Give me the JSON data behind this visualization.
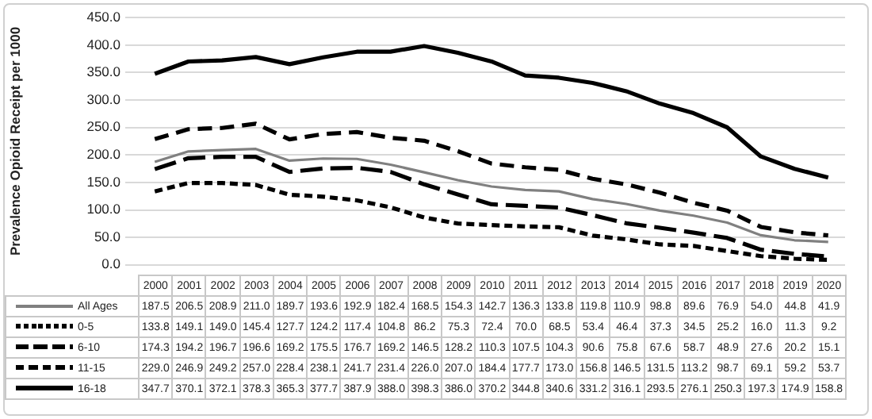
{
  "chart_data": {
    "type": "line",
    "ylabel": "Prevalence Opioid Receipt per 1000",
    "categories": [
      "2000",
      "2001",
      "2002",
      "2003",
      "2004",
      "2005",
      "2006",
      "2007",
      "2008",
      "2009",
      "2010",
      "2011",
      "2012",
      "2013",
      "2014",
      "2015",
      "2016",
      "2017",
      "2018",
      "2019",
      "2020"
    ],
    "series": [
      {
        "name": "All Ages",
        "color": "#808080",
        "line_style": "solid",
        "values": [
          187.5,
          206.5,
          208.9,
          211.0,
          189.7,
          193.6,
          192.9,
          182.4,
          168.5,
          154.3,
          142.7,
          136.3,
          133.8,
          119.8,
          110.9,
          98.8,
          89.6,
          76.9,
          54.0,
          44.8,
          41.9
        ],
        "value_labels": [
          "187.5",
          "206.5",
          "208.9",
          "211.0",
          "189.7",
          "193.6",
          "192.9",
          "182.4",
          "168.5",
          "154.3",
          "142.7",
          "136.3",
          "133.8",
          "119.8",
          "110.9",
          "98.8",
          "89.6",
          "76.9",
          "54.0",
          "44.8",
          "41.9"
        ]
      },
      {
        "name": "0-5",
        "color": "#000000",
        "line_style": "dotted",
        "values": [
          133.8,
          149.1,
          149.0,
          145.4,
          127.7,
          124.2,
          117.4,
          104.8,
          86.2,
          75.3,
          72.4,
          70.0,
          68.5,
          53.4,
          46.4,
          37.3,
          34.5,
          25.2,
          16.0,
          11.3,
          9.2
        ],
        "value_labels": [
          "133.8",
          "149.1",
          "149.0",
          "145.4",
          "127.7",
          "124.2",
          "117.4",
          "104.8",
          "86.2",
          "75.3",
          "72.4",
          "70.0",
          "68.5",
          "53.4",
          "46.4",
          "37.3",
          "34.5",
          "25.2",
          "16.0",
          "11.3",
          "9.2"
        ]
      },
      {
        "name": "6-10",
        "color": "#000000",
        "line_style": "dashed",
        "values": [
          174.3,
          194.2,
          196.7,
          196.6,
          169.2,
          175.5,
          176.7,
          169.2,
          146.5,
          128.2,
          110.3,
          107.5,
          104.3,
          90.6,
          75.8,
          67.6,
          58.7,
          48.9,
          27.6,
          20.2,
          15.1
        ],
        "value_labels": [
          "174.3",
          "194.2",
          "196.7",
          "196.6",
          "169.2",
          "175.5",
          "176.7",
          "169.2",
          "146.5",
          "128.2",
          "110.3",
          "107.5",
          "104.3",
          "90.6",
          "75.8",
          "67.6",
          "58.7",
          "48.9",
          "27.6",
          "20.2",
          "15.1"
        ]
      },
      {
        "name": "11-15",
        "color": "#000000",
        "line_style": "dashed",
        "values": [
          229.0,
          246.9,
          249.2,
          257.0,
          228.4,
          238.1,
          241.7,
          231.4,
          226.0,
          207.0,
          184.4,
          177.7,
          173.0,
          156.8,
          146.5,
          131.5,
          113.2,
          98.7,
          69.1,
          59.2,
          53.7
        ],
        "value_labels": [
          "229.0",
          "246.9",
          "249.2",
          "257.0",
          "228.4",
          "238.1",
          "241.7",
          "231.4",
          "226.0",
          "207.0",
          "184.4",
          "177.7",
          "173.0",
          "156.8",
          "146.5",
          "131.5",
          "113.2",
          "98.7",
          "69.1",
          "59.2",
          "53.7"
        ]
      },
      {
        "name": "16-18",
        "color": "#000000",
        "line_style": "solid",
        "values": [
          347.7,
          370.1,
          372.1,
          378.3,
          365.3,
          377.7,
          387.9,
          388.0,
          398.3,
          386.0,
          370.2,
          344.8,
          340.6,
          331.2,
          316.1,
          293.5,
          276.1,
          250.3,
          197.3,
          174.9,
          158.8
        ],
        "value_labels": [
          "347.7",
          "370.1",
          "372.1",
          "378.3",
          "365.3",
          "377.7",
          "387.9",
          "388.0",
          "398.3",
          "386.0",
          "370.2",
          "344.8",
          "340.6",
          "331.2",
          "316.1",
          "293.5",
          "276.1",
          "250.3",
          "197.3",
          "174.9",
          "158.8"
        ]
      }
    ],
    "ylim": [
      0,
      450
    ],
    "yticks": [
      {
        "value": 0,
        "label": "0.0"
      },
      {
        "value": 50,
        "label": "50.0"
      },
      {
        "value": 100,
        "label": "100.0"
      },
      {
        "value": 150,
        "label": "150.0"
      },
      {
        "value": 200,
        "label": "200.0"
      },
      {
        "value": 250,
        "label": "250.0"
      },
      {
        "value": 300,
        "label": "300.0"
      },
      {
        "value": 350,
        "label": "350.0"
      },
      {
        "value": 400,
        "label": "400.0"
      },
      {
        "value": 450,
        "label": "450.0"
      }
    ],
    "grid": "y",
    "legend": "bottom",
    "marker": "none"
  }
}
